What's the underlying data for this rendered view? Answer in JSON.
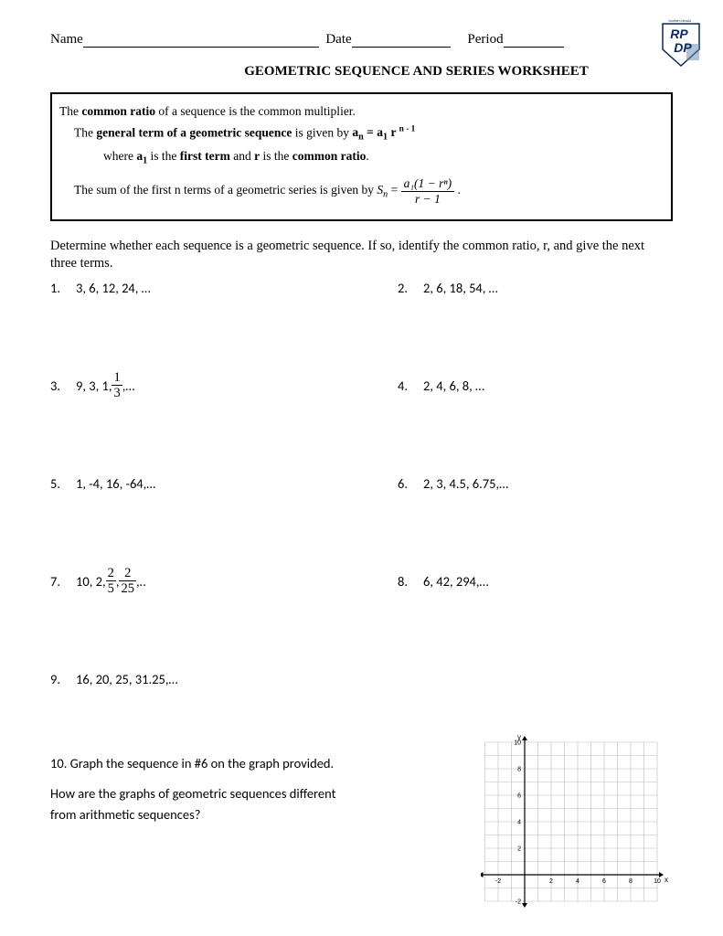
{
  "header": {
    "name_label": "Name",
    "date_label": "Date",
    "period_label": "Period",
    "name_blank_width": 258,
    "date_blank_width": 108,
    "period_blank_width": 66
  },
  "title": "GEOMETRIC SEQUENCE AND SERIES WORKSHEET",
  "info_box": {
    "line1_pre": "The ",
    "line1_bold": "common ratio",
    "line1_post": " of a sequence is the common multiplier.",
    "line2_pre": "The ",
    "line2_bold": "general term of a geometric sequence",
    "line2_mid": " is given by ",
    "line2_formula_b": "a",
    "line2_sub1": "n",
    "line2_eq": " = a",
    "line2_sub2": "1",
    "line2_r": " r ",
    "line2_sup": "n - 1",
    "line3_pre": "where ",
    "line3_b1": "a",
    "line3_sub": "1",
    "line3_mid": " is the ",
    "line3_b2": "first term",
    "line3_mid2": " and ",
    "line3_b3": "r",
    "line3_mid3": " is the ",
    "line3_b4": "common ratio",
    "line3_end": ".",
    "line4_pre": "The sum of the first n terms of a geometric series is given by  ",
    "line4_sn": "S",
    "line4_sn_sub": "n",
    "line4_eq": " = ",
    "line4_num": "a₁(1 − rⁿ)",
    "line4_den": "r − 1",
    "line4_end": " ."
  },
  "instructions": "Determine whether each sequence is a geometric sequence.  If so, identify the common ratio, r, and give the next three terms.",
  "problems": [
    {
      "num": "1.",
      "text": "3, 6, 12, 24, …",
      "pair_num": "2.",
      "pair_text": "2, 6, 18, 54, …"
    },
    {
      "num": "3.",
      "text_pre": "9, 3, 1, ",
      "frac_n": "1",
      "frac_d": "3",
      "text_post": ",…",
      "pair_num": "4.",
      "pair_text": "2, 4, 6, 8, …"
    },
    {
      "num": "5.",
      "text": "1, -4, 16, -64,…",
      "pair_num": "6.",
      "pair_text": "2, 3, 4.5, 6.75,…"
    },
    {
      "num": "7.",
      "text_pre": "10, 2, ",
      "frac_n": "2",
      "frac_d": "5",
      "frac2_n": "2",
      "frac2_d": "25",
      "text_post": " ,..",
      "pair_num": "8.",
      "pair_text": "6, 42, 294,…"
    },
    {
      "num": "9.",
      "text": "16, 20, 25, 31.25,…"
    }
  ],
  "q10": {
    "line1": "10.  Graph the sequence in #6 on the graph provided.",
    "line2": "How are the graphs of geometric sequences different",
    "line3": "from arithmetic sequences?"
  },
  "graph": {
    "x_label": "x",
    "y_label": "y",
    "x_min": -3,
    "x_max": 10,
    "y_min": -2,
    "y_max": 10,
    "x_ticks": [
      -2,
      2,
      4,
      6,
      8,
      10
    ],
    "y_ticks": [
      -2,
      2,
      4,
      6,
      8,
      10
    ],
    "grid_color": "#bbbbbb",
    "axis_color": "#000000",
    "accent_color": "#0070c0",
    "background": "#ffffff",
    "tick_fontsize": 7
  },
  "logo": {
    "top_text": "RP",
    "bottom_text": "DP",
    "border_color": "#0a2a5c",
    "fill_color": "#ffffff",
    "text_color": "#0a2a5c",
    "accent": "#6888aa",
    "caption": "Southern Nevada"
  }
}
